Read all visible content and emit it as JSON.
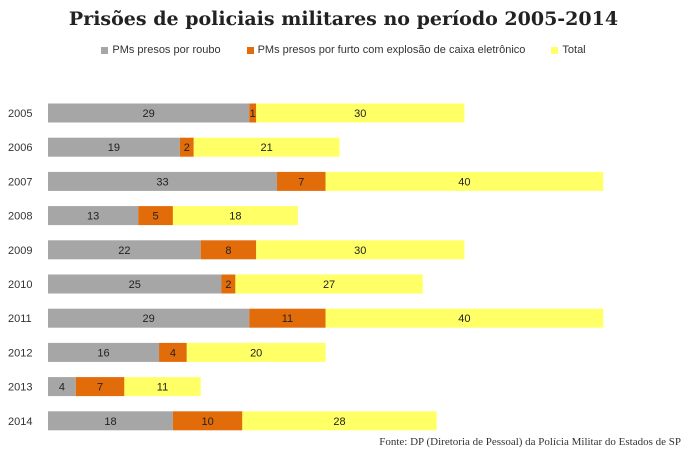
{
  "chart_data": {
    "type": "bar",
    "orientation": "horizontal",
    "stacked": true,
    "title": "Prisões de policiais militares no período 2005-2014",
    "categories": [
      "2005",
      "2006",
      "2007",
      "2008",
      "2009",
      "2010",
      "2011",
      "2012",
      "2013",
      "2014"
    ],
    "series": [
      {
        "name": "PMs presos por roubo",
        "color": "#a6a6a6",
        "values": [
          29,
          19,
          33,
          13,
          22,
          25,
          29,
          16,
          4,
          18
        ]
      },
      {
        "name": "PMs presos por furto com explosão de caixa eletrônico",
        "color": "#e36c0a",
        "values": [
          1,
          2,
          7,
          5,
          8,
          2,
          11,
          4,
          7,
          10
        ]
      },
      {
        "name": "Total",
        "color": "#ffff66",
        "values": [
          30,
          21,
          40,
          18,
          30,
          27,
          40,
          20,
          11,
          28
        ]
      }
    ],
    "grid": false,
    "legend": "top",
    "data_labels": true,
    "source": "Fonte: DP (Diretoria de Pessoal) da Polícia Militar do Estados de SP"
  }
}
